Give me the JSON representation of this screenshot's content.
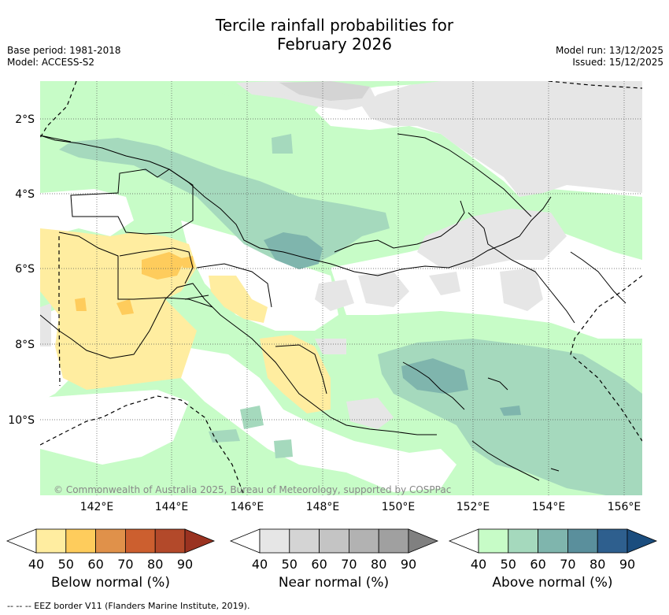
{
  "title_line1": "Tercile rainfall probabilities for",
  "title_line2": "February 2026",
  "base_period": "Base period: 1981-2018",
  "model": "Model: ACCESS-S2",
  "model_run": "Model run: 13/12/2025",
  "issued": "Issued: 15/12/2025",
  "copyright": "© Commonwealth of Australia 2025, Bureau of Meteorology, supported by COSPPac",
  "lat_labels": [
    "2°S",
    "4°S",
    "6°S",
    "8°S",
    "10°S"
  ],
  "lon_labels": [
    "142°E",
    "144°E",
    "146°E",
    "148°E",
    "150°E",
    "152°E",
    "154°E",
    "156°E"
  ],
  "colorbars": [
    {
      "label": "Below normal (%)",
      "ticks": [
        "40",
        "50",
        "60",
        "70",
        "80",
        "90"
      ],
      "colors": [
        "#ffeda0",
        "#fecc5c",
        "#e0914a",
        "#cc5f2f",
        "#b3492a",
        "#9a3220"
      ]
    },
    {
      "label": "Near normal (%)",
      "ticks": [
        "40",
        "50",
        "60",
        "70",
        "80",
        "90"
      ],
      "colors": [
        "#e6e6e6",
        "#d4d4d4",
        "#c4c4c4",
        "#b2b2b2",
        "#a0a0a0",
        "#808080"
      ]
    },
    {
      "label": "Above normal (%)",
      "ticks": [
        "40",
        "50",
        "60",
        "70",
        "80",
        "90"
      ],
      "colors": [
        "#c7fcc7",
        "#a5d9bd",
        "#7fb5ad",
        "#5a8f9c",
        "#2e5f8e",
        "#1b4d7e"
      ]
    }
  ],
  "footer": "--  --  -- EEZ border V11 (Flanders Marine Institute, 2019)."
}
